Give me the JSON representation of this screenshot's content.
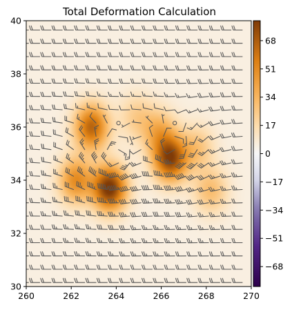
{
  "chart_data": {
    "type": "heatmap",
    "title": "Total Deformation Calculation",
    "xlabel": "",
    "ylabel": "",
    "xlim": [
      260,
      270
    ],
    "ylim": [
      30,
      40
    ],
    "x_ticks": [
      "260",
      "262",
      "264",
      "266",
      "268",
      "270"
    ],
    "y_ticks": [
      "30",
      "32",
      "34",
      "36",
      "38",
      "40"
    ],
    "x_tick_values": [
      260,
      262,
      264,
      266,
      268,
      270
    ],
    "y_tick_values": [
      30,
      32,
      34,
      36,
      38,
      40
    ],
    "colormap": "PuOr_r",
    "colorbar": {
      "range": [
        -80,
        80
      ],
      "ticks": [
        "68",
        "51",
        "34",
        "17",
        "0",
        "−17",
        "−34",
        "−51",
        "−68"
      ],
      "tick_values": [
        68,
        51,
        34,
        17,
        0,
        -17,
        -34,
        -51,
        -68
      ]
    },
    "field_peaks": [
      {
        "x": 263.7,
        "y": 33.7,
        "value": 78
      },
      {
        "x": 262.9,
        "y": 36.0,
        "value": 60
      },
      {
        "x": 262.2,
        "y": 34.0,
        "value": 45
      },
      {
        "x": 266.4,
        "y": 34.8,
        "value": 70
      },
      {
        "x": 265.9,
        "y": 35.8,
        "value": 30
      },
      {
        "x": 264.9,
        "y": 36.4,
        "value": 18
      },
      {
        "x": 268.2,
        "y": 33.6,
        "value": 25
      },
      {
        "x": 267.6,
        "y": 35.2,
        "value": 22
      }
    ],
    "wind_barbs": {
      "spacing": 0.5,
      "color": "#555555",
      "cyclone_centers": [
        {
          "x": 263.9,
          "y": 34.6,
          "strength": 1.0
        },
        {
          "x": 266.6,
          "y": 34.9,
          "strength": 0.85
        }
      ],
      "background_flow": "westerly"
    }
  },
  "colors": {
    "positive_low": "#fdf0e0",
    "positive_mid": "#f8b35a",
    "positive_high": "#b25804",
    "negative_mid": "#b9add4",
    "negative_high": "#2d004b",
    "zero": "#f7f7f7"
  }
}
